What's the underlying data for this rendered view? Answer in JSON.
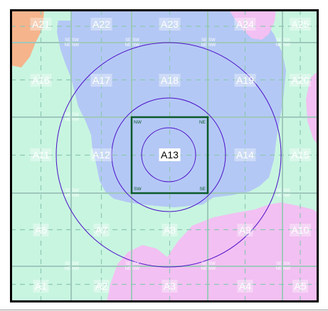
{
  "map": {
    "grid_rows": [
      [
        "A21",
        "A22",
        "A23",
        "A24",
        "A25"
      ],
      [
        "A16",
        "A17",
        "A18",
        "A19",
        "A20"
      ],
      [
        "A11",
        "A12",
        "A13",
        "A14",
        "A15"
      ],
      [
        "A6",
        "A7",
        "A8",
        "A9",
        "A10"
      ],
      [
        "A1",
        "A2",
        "A3",
        "A4",
        "A5"
      ]
    ],
    "highlighted_cell": "A13",
    "corner_labels": {
      "nw": "NW",
      "ne": "NE",
      "sw": "SW",
      "se": "SE"
    },
    "quadrant_marker": [
      "SE",
      "SW",
      "NE",
      "NW"
    ],
    "colors": {
      "mint": "#c8f5e0",
      "blue": "#b4c8f5",
      "pink": "#f2c0f2",
      "orange": "#f5b48c",
      "gridline": "#9ec8bc",
      "dashline": "#8cc8b4",
      "circle": "#4b0fc8",
      "square": "#0a5a2a",
      "border": "#000000",
      "label_bg": "#ffffff",
      "label_text": "#ffffff"
    }
  }
}
